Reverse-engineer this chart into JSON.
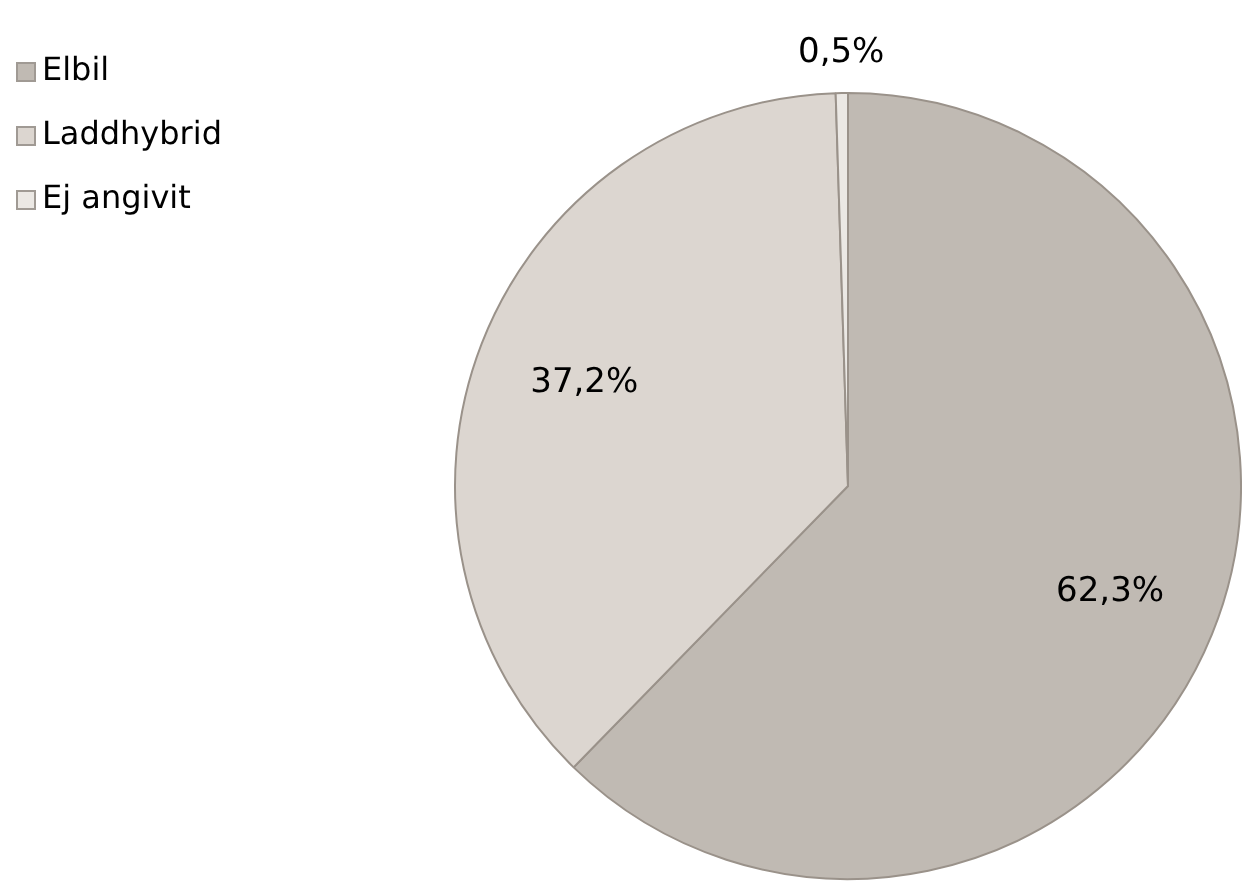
{
  "chart_data": {
    "type": "pie",
    "categories": [
      "Elbil",
      "Laddhybrid",
      "Ej angivit"
    ],
    "values": [
      62.3,
      37.2,
      0.5
    ],
    "value_labels": [
      "62,3%",
      "37,2%",
      "0,5%"
    ],
    "colors": [
      "#c0bab3",
      "#dcd6d0",
      "#ebe8e4"
    ],
    "legend": "top left"
  }
}
